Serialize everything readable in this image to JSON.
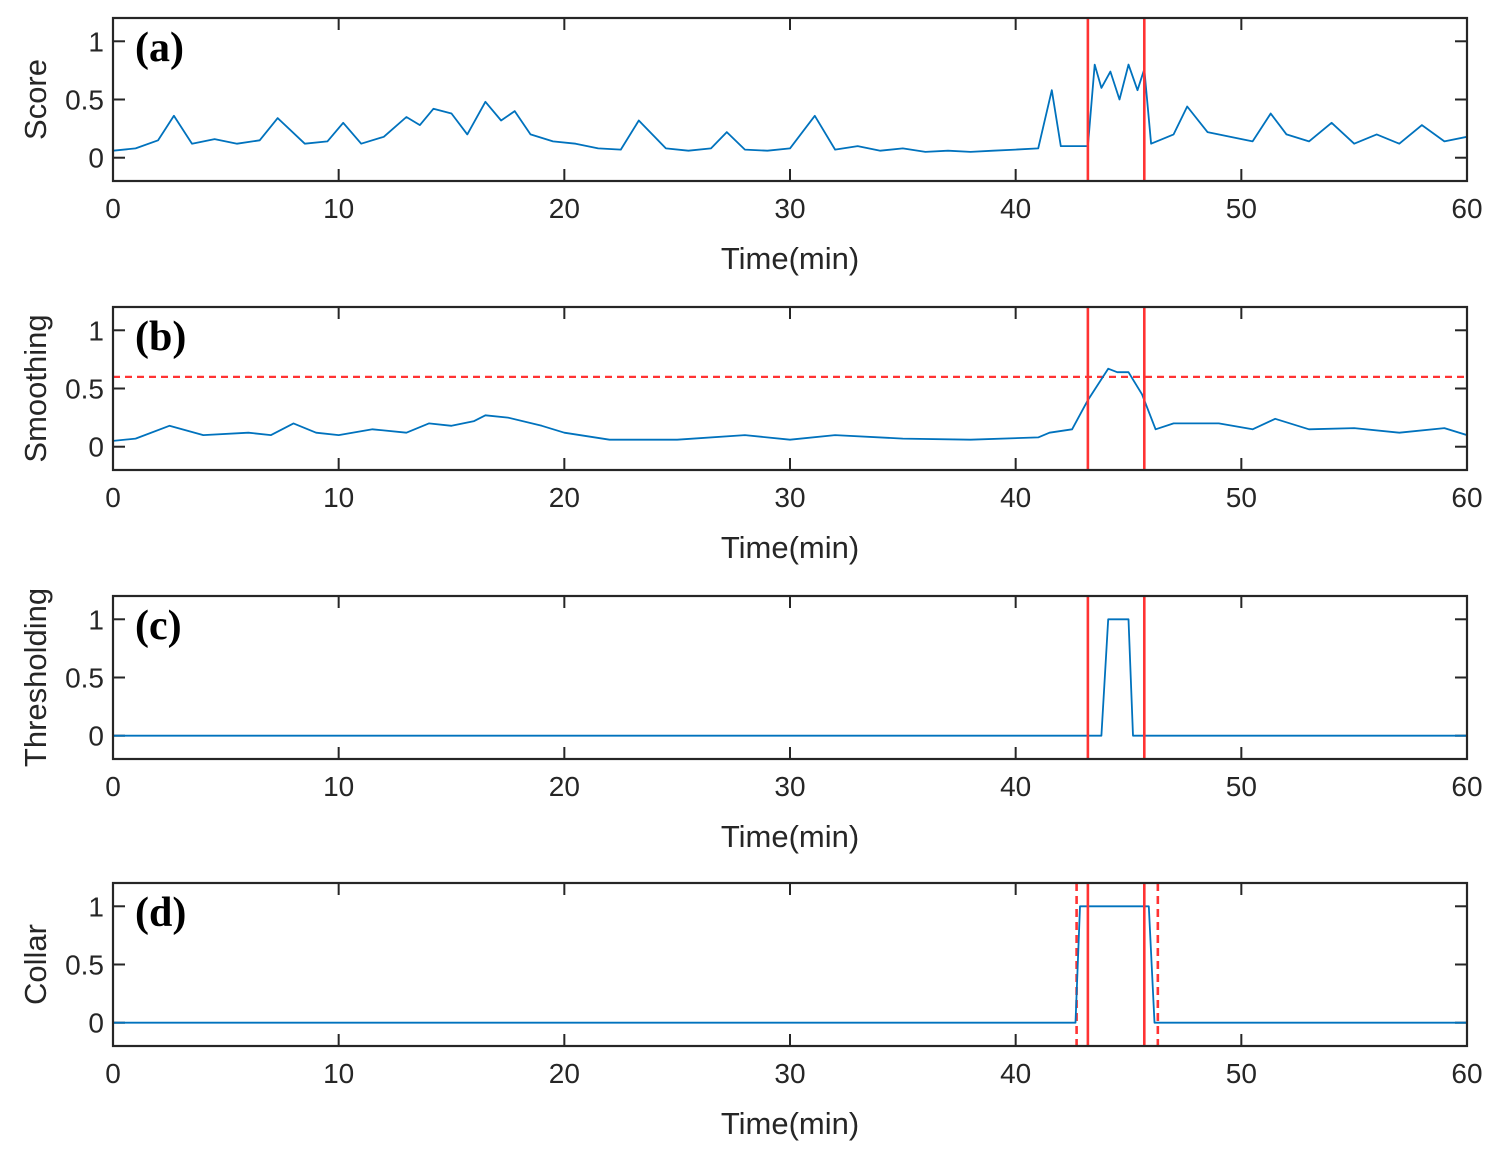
{
  "colors": {
    "series": "#0072BD",
    "event": "#FF3333",
    "axes": "#262626"
  },
  "chart_data": [
    {
      "type": "line",
      "panel_tag": "(a)",
      "ylabel": "Score",
      "xlabel": "Time(min)",
      "xlim": [
        0,
        60
      ],
      "ylim": [
        -0.2,
        1.2
      ],
      "xticks": [
        "0",
        "10",
        "20",
        "30",
        "40",
        "50",
        "60"
      ],
      "yticks": [
        "0",
        "0.5",
        "1"
      ],
      "event_lines": [
        43.2,
        45.7
      ],
      "series": [
        {
          "name": "score",
          "x": [
            0,
            1,
            2,
            2.7,
            3.5,
            4.5,
            5.5,
            6.5,
            7.3,
            8.5,
            9.5,
            10.2,
            11,
            12,
            13,
            13.6,
            14.2,
            15,
            15.7,
            16.5,
            17.2,
            17.8,
            18.5,
            19.5,
            20.5,
            21.5,
            22.5,
            23.3,
            24.5,
            25.5,
            26.5,
            27.2,
            28,
            29,
            30,
            31.1,
            32,
            33,
            34,
            35,
            36,
            37,
            38,
            39,
            40,
            41,
            41.6,
            42,
            42.5,
            43.2,
            43.5,
            43.8,
            44.2,
            44.6,
            45,
            45.4,
            45.7,
            46,
            46.5,
            47,
            47.6,
            48.5,
            49.5,
            50.5,
            51.3,
            52,
            53,
            54,
            55,
            56,
            57,
            58,
            59,
            60
          ],
          "y": [
            0.06,
            0.08,
            0.15,
            0.36,
            0.12,
            0.16,
            0.12,
            0.15,
            0.34,
            0.12,
            0.14,
            0.3,
            0.12,
            0.18,
            0.35,
            0.28,
            0.42,
            0.38,
            0.2,
            0.48,
            0.32,
            0.4,
            0.2,
            0.14,
            0.12,
            0.08,
            0.07,
            0.32,
            0.08,
            0.06,
            0.08,
            0.22,
            0.07,
            0.06,
            0.08,
            0.36,
            0.07,
            0.1,
            0.06,
            0.08,
            0.05,
            0.06,
            0.05,
            0.06,
            0.07,
            0.08,
            0.58,
            0.1,
            0.1,
            0.1,
            0.8,
            0.6,
            0.74,
            0.5,
            0.8,
            0.58,
            0.76,
            0.12,
            0.16,
            0.2,
            0.44,
            0.22,
            0.18,
            0.14,
            0.38,
            0.2,
            0.14,
            0.3,
            0.12,
            0.2,
            0.12,
            0.28,
            0.14,
            0.18
          ]
        }
      ]
    },
    {
      "type": "line",
      "panel_tag": "(b)",
      "ylabel": "Smoothing",
      "xlabel": "Time(min)",
      "xlim": [
        0,
        60
      ],
      "ylim": [
        -0.2,
        1.2
      ],
      "xticks": [
        "0",
        "10",
        "20",
        "30",
        "40",
        "50",
        "60"
      ],
      "yticks": [
        "0",
        "0.5",
        "1"
      ],
      "event_lines": [
        43.2,
        45.7
      ],
      "threshold": 0.6,
      "series": [
        {
          "name": "smoothing",
          "x": [
            0,
            1,
            2.5,
            4,
            6,
            7,
            8,
            9,
            10,
            11.5,
            13,
            14,
            15,
            16,
            16.5,
            17.5,
            19,
            20,
            22,
            25,
            28,
            30,
            32,
            35,
            38,
            41,
            41.5,
            42.5,
            43.2,
            44.1,
            44.5,
            45,
            45.6,
            46.2,
            47,
            49,
            50.5,
            51.5,
            53,
            55,
            57,
            59,
            60
          ],
          "y": [
            0.05,
            0.07,
            0.18,
            0.1,
            0.12,
            0.1,
            0.2,
            0.12,
            0.1,
            0.15,
            0.12,
            0.2,
            0.18,
            0.22,
            0.27,
            0.25,
            0.18,
            0.12,
            0.06,
            0.06,
            0.1,
            0.06,
            0.1,
            0.07,
            0.06,
            0.08,
            0.12,
            0.15,
            0.4,
            0.67,
            0.64,
            0.64,
            0.45,
            0.15,
            0.2,
            0.2,
            0.15,
            0.24,
            0.15,
            0.16,
            0.12,
            0.16,
            0.1
          ]
        }
      ]
    },
    {
      "type": "line",
      "panel_tag": "(c)",
      "ylabel": "Thresholding",
      "xlabel": "Time(min)",
      "xlim": [
        0,
        60
      ],
      "ylim": [
        -0.2,
        1.2
      ],
      "xticks": [
        "0",
        "10",
        "20",
        "30",
        "40",
        "50",
        "60"
      ],
      "yticks": [
        "0",
        "0.5",
        "1"
      ],
      "event_lines": [
        43.2,
        45.7
      ],
      "series": [
        {
          "name": "thresholding",
          "x": [
            0,
            43.8,
            44.1,
            45.0,
            45.2,
            60
          ],
          "y": [
            0,
            0,
            1,
            1,
            0,
            0
          ]
        }
      ]
    },
    {
      "type": "line",
      "panel_tag": "(d)",
      "ylabel": "Collar",
      "xlabel": "Time(min)",
      "xlim": [
        0,
        60
      ],
      "ylim": [
        -0.2,
        1.2
      ],
      "xticks": [
        "0",
        "10",
        "20",
        "30",
        "40",
        "50",
        "60"
      ],
      "yticks": [
        "0",
        "0.5",
        "1"
      ],
      "event_lines": [
        43.2,
        45.7
      ],
      "collar_lines": [
        42.7,
        46.3
      ],
      "series": [
        {
          "name": "collar",
          "x": [
            0,
            42.65,
            42.85,
            45.9,
            46.15,
            60
          ],
          "y": [
            0,
            0,
            1,
            1,
            0,
            0
          ]
        }
      ]
    }
  ]
}
